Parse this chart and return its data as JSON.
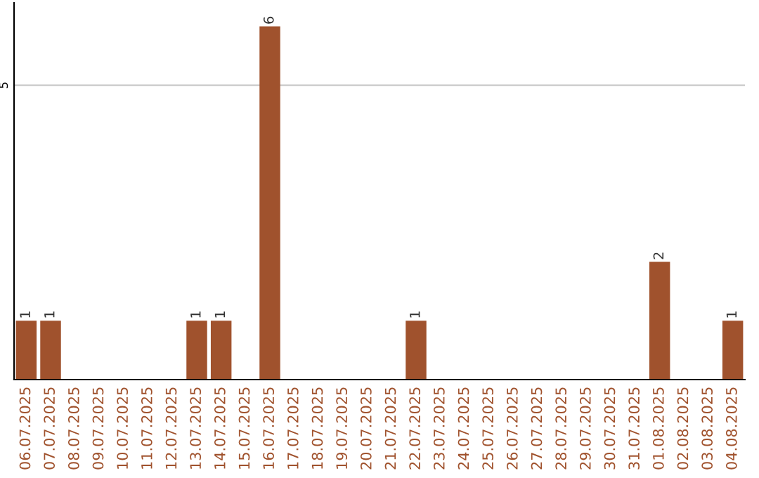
{
  "chart_data": {
    "type": "bar",
    "categories": [
      "06.07.2025",
      "07.07.2025",
      "08.07.2025",
      "09.07.2025",
      "10.07.2025",
      "11.07.2025",
      "12.07.2025",
      "13.07.2025",
      "14.07.2025",
      "15.07.2025",
      "16.07.2025",
      "17.07.2025",
      "18.07.2025",
      "19.07.2025",
      "20.07.2025",
      "21.07.2025",
      "22.07.2025",
      "23.07.2025",
      "24.07.2025",
      "25.07.2025",
      "26.07.2025",
      "27.07.2025",
      "28.07.2025",
      "29.07.2025",
      "30.07.2025",
      "31.07.2025",
      "01.08.2025",
      "02.08.2025",
      "03.08.2025",
      "04.08.2025"
    ],
    "values": [
      1,
      1,
      0,
      0,
      0,
      0,
      0,
      1,
      1,
      0,
      6,
      0,
      0,
      0,
      0,
      0,
      1,
      0,
      0,
      0,
      0,
      0,
      0,
      0,
      0,
      0,
      2,
      0,
      0,
      1
    ],
    "color": "#a0522d",
    "value_labels": [
      "1",
      "1",
      null,
      null,
      null,
      null,
      null,
      "1",
      "1",
      null,
      "6",
      null,
      null,
      null,
      null,
      null,
      "1",
      null,
      null,
      null,
      null,
      null,
      null,
      null,
      null,
      null,
      "2",
      null,
      null,
      "1"
    ],
    "ylim": [
      0,
      6.4
    ],
    "yticks": [
      5
    ],
    "grid": "y"
  }
}
